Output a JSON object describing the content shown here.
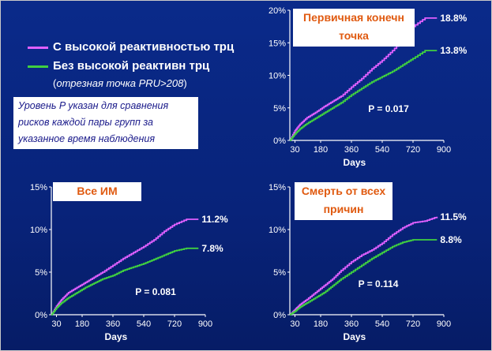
{
  "legend": {
    "items": [
      {
        "label": "С высокой реактивностью трц",
        "color": "#e060ff"
      },
      {
        "label": "Без высокой реактивн трц",
        "color": "#40d040"
      }
    ],
    "note_open": "(",
    "note_italic": "отрезная точка PRU>208",
    "note_close": ")"
  },
  "note_box": {
    "lines": [
      "Уровень P указан для сравнения",
      "рисков каждой пары групп за",
      "указанное время наблюдения"
    ]
  },
  "colors": {
    "high": "#e060ff",
    "low": "#40d040",
    "background": "#08237a",
    "title_text": "#e05a10"
  },
  "chart_data": [
    {
      "type": "line",
      "title_lines": [
        "Первичная конечн",
        "точка"
      ],
      "xlabel": "Days",
      "xticks": [
        30,
        180,
        360,
        540,
        720,
        900
      ],
      "xlim": [
        0,
        900
      ],
      "yticks": [
        "0%",
        "5%",
        "10%",
        "15%",
        "20%"
      ],
      "ylim": [
        0,
        20
      ],
      "p_value": "P = 0.017",
      "series": [
        {
          "color": "#e060ff",
          "end_label": "18.8%",
          "x": [
            0,
            30,
            60,
            100,
            150,
            200,
            250,
            300,
            360,
            420,
            480,
            540,
            600,
            660,
            720,
            790,
            860
          ],
          "y": [
            0,
            1.5,
            2.5,
            3.5,
            4.3,
            5.2,
            6.0,
            6.8,
            8.2,
            9.5,
            11.0,
            12.3,
            13.8,
            15.5,
            17.5,
            18.8,
            18.8
          ]
        },
        {
          "color": "#40d040",
          "end_label": "13.8%",
          "x": [
            0,
            30,
            60,
            100,
            150,
            200,
            250,
            300,
            360,
            420,
            480,
            540,
            600,
            660,
            720,
            790,
            860
          ],
          "y": [
            0,
            1.0,
            1.8,
            2.6,
            3.4,
            4.2,
            5.0,
            5.8,
            7.0,
            8.0,
            9.0,
            9.8,
            10.6,
            11.6,
            12.6,
            13.8,
            13.8
          ]
        }
      ]
    },
    {
      "type": "line",
      "title_lines": [
        "Все ИМ"
      ],
      "xlabel": "Days",
      "xticks": [
        30,
        180,
        360,
        540,
        720,
        900
      ],
      "xlim": [
        0,
        900
      ],
      "yticks": [
        "0%",
        "5%",
        "10%",
        "15%"
      ],
      "ylim": [
        0,
        15
      ],
      "p_value": "P = 0.081",
      "series": [
        {
          "color": "#e060ff",
          "end_label": "11.2%",
          "x": [
            0,
            30,
            60,
            100,
            150,
            200,
            250,
            300,
            360,
            420,
            480,
            540,
            600,
            660,
            720,
            790,
            860
          ],
          "y": [
            0,
            1.0,
            1.8,
            2.6,
            3.2,
            3.8,
            4.4,
            5.0,
            5.8,
            6.6,
            7.3,
            8.0,
            8.8,
            9.8,
            10.6,
            11.2,
            11.2
          ]
        },
        {
          "color": "#40d040",
          "end_label": "7.8%",
          "x": [
            0,
            30,
            60,
            100,
            150,
            200,
            250,
            300,
            360,
            420,
            480,
            540,
            600,
            660,
            720,
            790,
            860
          ],
          "y": [
            0,
            0.8,
            1.4,
            2.0,
            2.6,
            3.2,
            3.7,
            4.2,
            4.6,
            5.2,
            5.6,
            6.0,
            6.5,
            7.0,
            7.5,
            7.8,
            7.8
          ]
        }
      ]
    },
    {
      "type": "line",
      "title_lines": [
        "Смерть от всех",
        "причин"
      ],
      "xlabel": "Days",
      "xticks": [
        30,
        180,
        360,
        540,
        720,
        900
      ],
      "xlim": [
        0,
        900
      ],
      "yticks": [
        "0%",
        "5%",
        "10%",
        "15%"
      ],
      "ylim": [
        0,
        15
      ],
      "p_value": "P = 0.114",
      "series": [
        {
          "color": "#e060ff",
          "end_label": "11.5%",
          "x": [
            0,
            30,
            60,
            100,
            150,
            200,
            250,
            300,
            360,
            420,
            480,
            540,
            600,
            660,
            720,
            790,
            860
          ],
          "y": [
            0,
            0.6,
            1.2,
            1.8,
            2.6,
            3.4,
            4.2,
            5.2,
            6.2,
            7.0,
            7.6,
            8.4,
            9.4,
            10.2,
            10.8,
            11.0,
            11.5
          ]
        },
        {
          "color": "#40d040",
          "end_label": "8.8%",
          "x": [
            0,
            30,
            60,
            100,
            150,
            200,
            250,
            300,
            360,
            420,
            480,
            540,
            600,
            660,
            720,
            790,
            860
          ],
          "y": [
            0,
            0.4,
            0.9,
            1.4,
            2.0,
            2.6,
            3.4,
            4.2,
            5.0,
            5.8,
            6.6,
            7.3,
            8.0,
            8.5,
            8.8,
            8.8,
            8.8
          ]
        }
      ]
    }
  ]
}
